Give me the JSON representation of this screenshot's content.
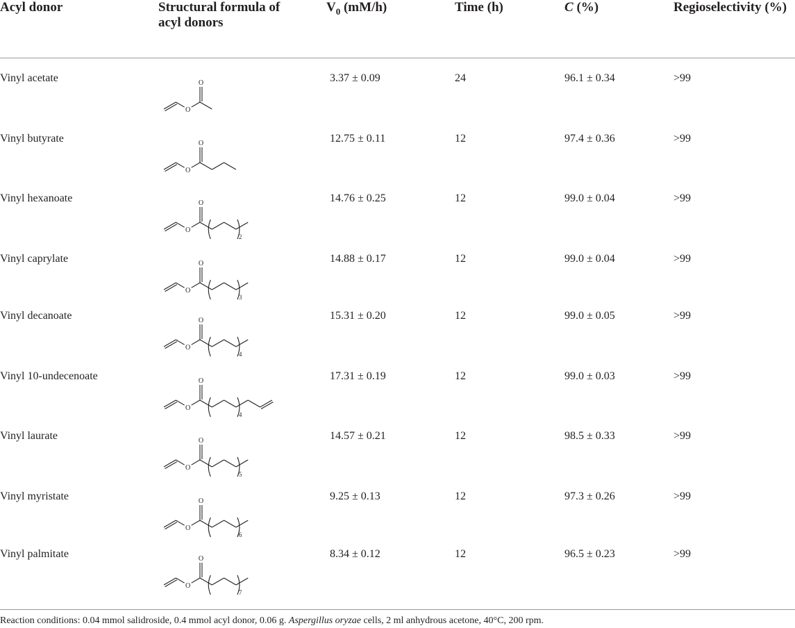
{
  "table": {
    "headers": {
      "acyl_donor": "Acyl donor",
      "structural_formula": "Structural formula of acyl donors",
      "v0_letter": "V",
      "v0_sub": "0",
      "v0_unit": "(mM/h)",
      "time": "Time (h)",
      "conversion_symbol": "C",
      "conversion_unit": "(%)",
      "regioselectivity": "Regioselectivity (%)"
    },
    "rows": [
      {
        "donor": "Vinyl acetate",
        "v0": "3.37 ± 0.09",
        "time": "24",
        "conversion": "96.1 ± 0.34",
        "regio": ">99",
        "subscript": ""
      },
      {
        "donor": "Vinyl butyrate",
        "v0": "12.75 ± 0.11",
        "time": "12",
        "conversion": "97.4 ± 0.36",
        "regio": ">99",
        "subscript": ""
      },
      {
        "donor": "Vinyl hexanoate",
        "v0": "14.76 ± 0.25",
        "time": "12",
        "conversion": "99.0 ± 0.04",
        "regio": ">99",
        "subscript": "2"
      },
      {
        "donor": "Vinyl caprylate",
        "v0": "14.88 ± 0.17",
        "time": "12",
        "conversion": "99.0 ± 0.04",
        "regio": ">99",
        "subscript": "3"
      },
      {
        "donor": "Vinyl decanoate",
        "v0": "15.31 ± 0.20",
        "time": "12",
        "conversion": "99.0 ± 0.05",
        "regio": ">99",
        "subscript": "4"
      },
      {
        "donor": "Vinyl 10-undecenoate",
        "v0": "17.31 ± 0.19",
        "time": "12",
        "conversion": "99.0 ± 0.03",
        "regio": ">99",
        "subscript": "4"
      },
      {
        "donor": "Vinyl laurate",
        "v0": "14.57 ± 0.21",
        "time": "12",
        "conversion": "98.5 ± 0.33",
        "regio": ">99",
        "subscript": "5"
      },
      {
        "donor": "Vinyl myristate",
        "v0": "9.25 ± 0.13",
        "time": "12",
        "conversion": "97.3 ± 0.26",
        "regio": ">99",
        "subscript": "6"
      },
      {
        "donor": "Vinyl palmitate",
        "v0": "8.34 ± 0.12",
        "time": "12",
        "conversion": "96.5 ± 0.23",
        "regio": ">99",
        "subscript": "7"
      }
    ],
    "atom_label": "O"
  },
  "footnote": {
    "prefix": "Reaction conditions: 0.04 mmol salidroside, 0.4 mmol acyl donor, 0.06 g.",
    "organism": "Aspergillus oryzae",
    "suffix": "cells, 2 ml anhydrous acetone, 40°C, 200 rpm."
  }
}
